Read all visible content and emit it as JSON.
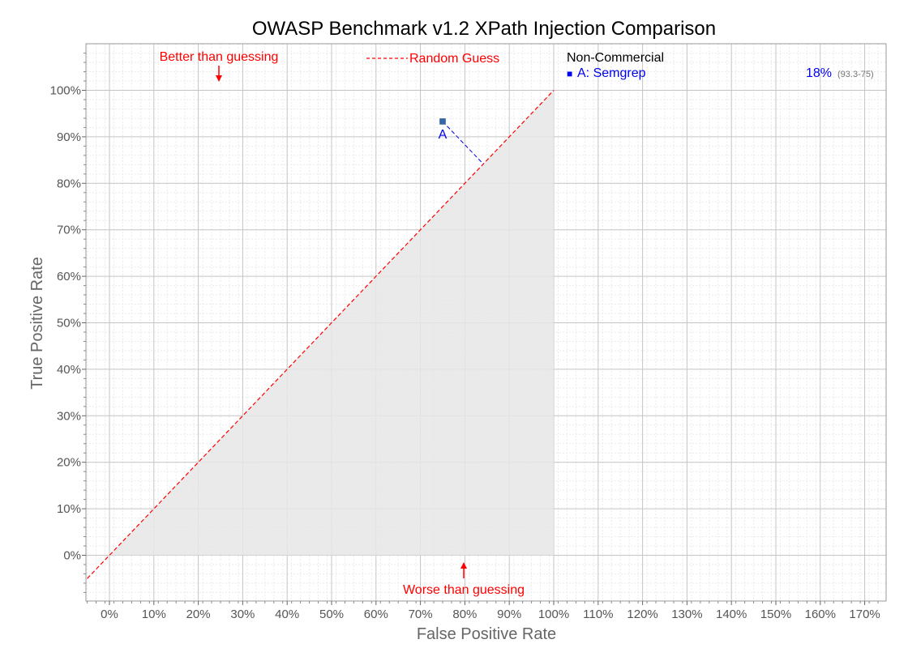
{
  "chart_data": {
    "type": "scatter",
    "title": "OWASP Benchmark v1.2 XPath Injection Comparison",
    "xlabel": "False Positive Rate",
    "ylabel": "True Positive Rate",
    "xlim": [
      -5,
      173
    ],
    "ylim": [
      -10,
      110
    ],
    "x_ticks": [
      0,
      10,
      20,
      30,
      40,
      50,
      60,
      70,
      80,
      90,
      100,
      110,
      120,
      130,
      140,
      150,
      160,
      170
    ],
    "y_ticks": [
      0,
      10,
      20,
      30,
      40,
      50,
      60,
      70,
      80,
      90,
      100
    ],
    "tick_suffix": "%",
    "grid": true,
    "reference_line": {
      "label": "Random Guess",
      "color": "#ff0000",
      "style": "dashed",
      "from": [
        -5,
        -5
      ],
      "to": [
        100,
        100
      ]
    },
    "shaded_region": {
      "description_label": "Worse than guessing",
      "color": "#e6e6e6"
    },
    "annotations": [
      {
        "text": "Better than guessing",
        "x": 25,
        "y": 107,
        "arrow": "down",
        "color": "#ff0000"
      },
      {
        "text": "Worse than guessing",
        "x": 80,
        "y": -7,
        "arrow": "up",
        "color": "#ff0000"
      }
    ],
    "points": [
      {
        "label": "A",
        "name": "Semgrep",
        "x": 75,
        "y": 93.3,
        "color": "#3366aa",
        "label_color": "#0000ee"
      }
    ],
    "legend": {
      "placement": "right",
      "group_title": "Non-Commercial",
      "entries": [
        {
          "marker": "■",
          "text": "A: Semgrep",
          "score": "18%",
          "detail": "(93.3-75)",
          "color": "#0000ee"
        }
      ]
    }
  }
}
